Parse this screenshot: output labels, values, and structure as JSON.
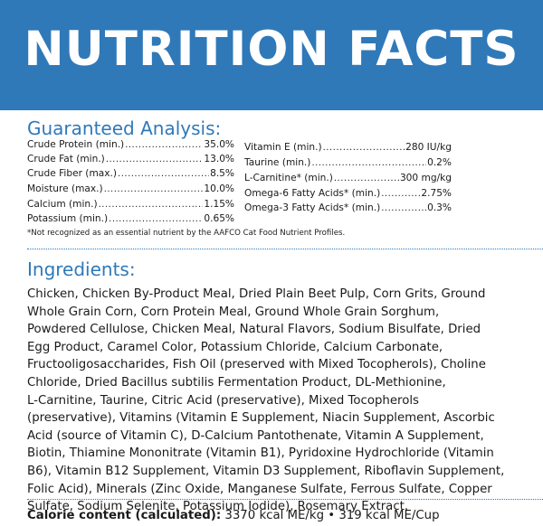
{
  "header": {
    "title": "NUTRITION FACTS"
  },
  "guaranteed_analysis": {
    "title": "Guaranteed Analysis:",
    "left": [
      {
        "label": "Crude Protein (min.)",
        "value": "35.0%"
      },
      {
        "label": "Crude Fat (min.)",
        "value": "13.0%"
      },
      {
        "label": "Crude Fiber (max.)",
        "value": "8.5%"
      },
      {
        "label": "Moisture (max.)",
        "value": "10.0%"
      },
      {
        "label": "Calcium (min.)",
        "value": "1.15%"
      },
      {
        "label": "Potassium (min.)",
        "value": "0.65%"
      }
    ],
    "right": [
      {
        "label": "Vitamin E (min.)",
        "value": "280 IU/kg"
      },
      {
        "label": "Taurine (min.)",
        "value": "0.2%"
      },
      {
        "label": "L-Carnitine* (min.)",
        "value": "300 mg/kg"
      },
      {
        "label": "Omega-6 Fatty Acids* (min.)",
        "value": "2.75%"
      },
      {
        "label": "Omega-3 Fatty Acids* (min.)",
        "value": "0.3%"
      }
    ],
    "footnote": "*Not recognized as an essential nutrient by the AAFCO Cat Food Nutrient Profiles."
  },
  "ingredients": {
    "title": "Ingredients:",
    "lines": [
      "Chicken, Chicken By-Product Meal, Dried Plain Beet Pulp, Corn Grits, Ground",
      "Whole Grain Corn, Corn Protein Meal, Ground Whole Grain Sorghum,",
      "Powdered Cellulose, Chicken Meal, Natural Flavors, Sodium Bisulfate, Dried",
      "Egg Product, Caramel Color, Potassium Chloride, Calcium Carbonate,",
      "Fructooligosaccharides, Fish Oil (preserved with Mixed Tocopherols), Choline",
      "Chloride, Dried Bacillus subtilis Fermentation Product, DL-Methionine,",
      "L-Carnitine, Taurine, Citric Acid (preservative), Mixed Tocopherols",
      "(preservative), Vitamins (Vitamin E Supplement, Niacin Supplement, Ascorbic",
      "Acid (source of Vitamin C), D-Calcium Pantothenate, Vitamin A Supplement,",
      "Biotin, Thiamine Mononitrate (Vitamin B1), Pyridoxine Hydrochloride (Vitamin",
      "B6), Vitamin B12 Supplement, Vitamin D3 Supplement, Riboflavin Supplement,",
      "Folic Acid), Minerals (Zinc Oxide, Manganese Sulfate, Ferrous Sulfate, Copper",
      "Sulfate, Sodium Selenite, Potassium Iodide), Rosemary Extract."
    ]
  },
  "calorie": {
    "label": "Calorie content (calculated):",
    "value": "3370 kcal ME/kg • 319 kcal ME/Cup"
  },
  "colors": {
    "accent": "#2f79b9",
    "text": "#1a1a1a"
  }
}
